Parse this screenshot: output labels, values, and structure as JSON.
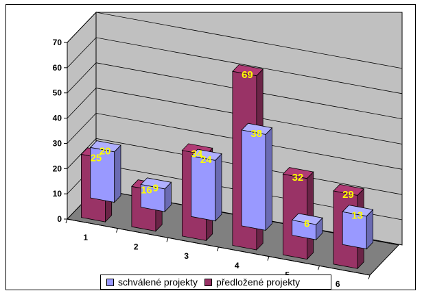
{
  "chart_data": {
    "type": "bar",
    "categories": [
      "1",
      "2",
      "3",
      "4",
      "5",
      "6"
    ],
    "series": [
      {
        "name": "schválené projekty",
        "values": [
          20,
          9,
          24,
          38,
          6,
          13
        ],
        "color": "#9999ff"
      },
      {
        "name": "předložené projekty",
        "values": [
          25,
          16,
          34,
          69,
          32,
          29
        ],
        "color": "#993366"
      }
    ],
    "y_ticks": [
      "0",
      "10",
      "20",
      "30",
      "40",
      "50",
      "60",
      "70"
    ],
    "ylim": [
      0,
      70
    ],
    "grid": true,
    "legend_position": "bottom",
    "label_color": "#ffff00",
    "wall_color": "#c0c0c0",
    "floor_color": "#808080"
  }
}
